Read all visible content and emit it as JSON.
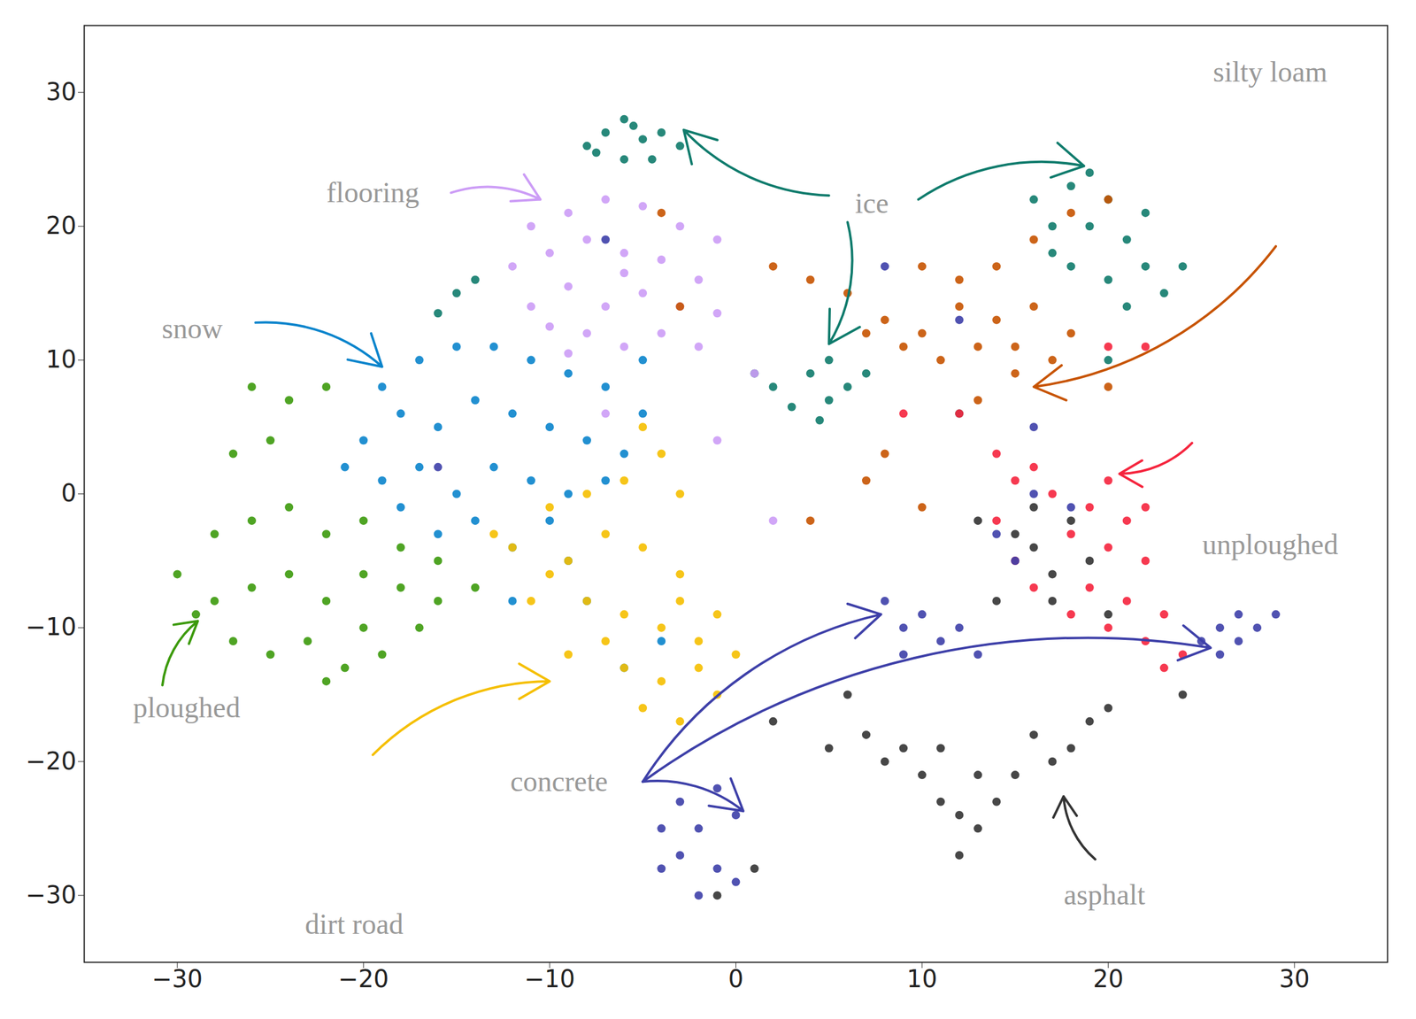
{
  "chart_data": {
    "type": "scatter",
    "xlim": [
      -35,
      35
    ],
    "ylim": [
      -35,
      35
    ],
    "xticks": [
      -30,
      -20,
      -10,
      0,
      10,
      20,
      30
    ],
    "yticks": [
      -30,
      -20,
      -10,
      0,
      10,
      20,
      30
    ],
    "grid": false,
    "series": [
      {
        "name": "ice",
        "color": "#0f7b6c",
        "x": [
          -8,
          -7,
          -6,
          -5,
          -4,
          -3,
          -6,
          -7.5,
          -4.5,
          -5.5,
          16,
          18,
          20,
          17,
          19,
          21,
          22,
          18,
          20,
          23,
          21,
          17,
          19,
          22,
          24,
          2,
          4,
          5,
          6,
          3,
          5,
          4.5,
          1,
          7,
          -15,
          -14,
          -16,
          12,
          20
        ],
        "y": [
          26,
          27,
          28,
          26.5,
          27,
          26,
          25,
          25.5,
          25,
          27.5,
          22,
          23,
          22,
          20,
          20,
          19,
          17,
          17,
          16,
          15,
          14,
          18,
          24,
          21,
          17,
          8,
          9,
          7,
          8,
          6.5,
          10,
          5.5,
          9,
          9,
          15,
          16,
          13.5,
          6,
          10
        ]
      },
      {
        "name": "flooring",
        "color": "#cc9cf6",
        "x": [
          -11,
          -9,
          -7,
          -5,
          -3,
          -1,
          -12,
          -10,
          -8,
          -6,
          -4,
          -2,
          -11,
          -9,
          -7,
          -5,
          -3,
          -1,
          -8,
          -6,
          -4,
          -9,
          -2,
          -10,
          -6,
          -7,
          2,
          1,
          -1
        ],
        "y": [
          20,
          21,
          22,
          21.5,
          20,
          19,
          17,
          18,
          19,
          18,
          17.5,
          16,
          14,
          15.5,
          14,
          15,
          14,
          13.5,
          12,
          11,
          12,
          10.5,
          11,
          12.5,
          16.5,
          6,
          -2,
          9,
          4
        ]
      },
      {
        "name": "snow",
        "color": "#0a84cc",
        "x": [
          -19,
          -17,
          -15,
          -13,
          -11,
          -9,
          -7,
          -5,
          -20,
          -18,
          -16,
          -14,
          -12,
          -10,
          -8,
          -6,
          -19,
          -17,
          -15,
          -13,
          -11,
          -9,
          -7,
          -16,
          -14,
          -12,
          -10,
          -18,
          -21,
          -5,
          -8,
          -6,
          -9,
          -12,
          -4
        ],
        "y": [
          8,
          10,
          11,
          11,
          10,
          9,
          8,
          6,
          4,
          6,
          5,
          7,
          6,
          5,
          4,
          3,
          1,
          2,
          0,
          2,
          1,
          0,
          1,
          -3,
          -2,
          -4,
          -2,
          -1,
          2,
          10,
          -8,
          -13,
          -5,
          -8,
          -11
        ]
      },
      {
        "name": "ploughed",
        "color": "#3c9a0c",
        "x": [
          -26,
          -24,
          -22,
          -27,
          -25,
          -28,
          -26,
          -24,
          -22,
          -20,
          -18,
          -16,
          -30,
          -28,
          -26,
          -24,
          -22,
          -20,
          -18,
          -16,
          -14,
          -27,
          -25,
          -23,
          -21,
          -19,
          -17,
          -22,
          -29,
          -20
        ],
        "y": [
          8,
          7,
          8,
          3,
          4,
          -3,
          -2,
          -1,
          -3,
          -2,
          -4,
          -5,
          -6,
          -8,
          -7,
          -6,
          -8,
          -6,
          -7,
          -8,
          -7,
          -11,
          -12,
          -11,
          -13,
          -12,
          -10,
          -14,
          -9,
          -10
        ]
      },
      {
        "name": "dirt road",
        "color": "#f5bf00",
        "x": [
          -5,
          -4,
          -6,
          -3,
          -8,
          -10,
          -7,
          -12,
          -9,
          -5,
          -3,
          -11,
          -8,
          -6,
          -4,
          -2,
          -9,
          -6,
          -4,
          -2,
          0,
          -5,
          -3,
          -1,
          -7,
          -13,
          -10,
          -3,
          -1
        ],
        "y": [
          5,
          3,
          1,
          0,
          0,
          -1,
          -3,
          -4,
          -5,
          -4,
          -6,
          -8,
          -8,
          -9,
          -10,
          -11,
          -12,
          -13,
          -14,
          -13,
          -12,
          -16,
          -17,
          -15,
          -11,
          -3,
          -6,
          -8,
          -9
        ]
      },
      {
        "name": "silty loam",
        "color": "#c75300",
        "x": [
          2,
          4,
          6,
          8,
          10,
          12,
          14,
          16,
          18,
          17,
          15,
          13,
          11,
          9,
          7,
          14,
          16,
          18,
          20,
          12,
          10,
          15,
          -4,
          -3,
          7,
          10,
          4,
          20,
          13,
          8
        ],
        "y": [
          17,
          16,
          15,
          13,
          12,
          14,
          13,
          14,
          12,
          10,
          9,
          11,
          10,
          11,
          12,
          17,
          19,
          21,
          22,
          16,
          17,
          11,
          21,
          14,
          1,
          -1,
          -2,
          8,
          7,
          3
        ]
      },
      {
        "name": "unploughed",
        "color": "#f5243d",
        "x": [
          14,
          15,
          16,
          17,
          19,
          21,
          22,
          14,
          18,
          20,
          22,
          19,
          21,
          23,
          20,
          22,
          24,
          23,
          18,
          15,
          16,
          20,
          12,
          9,
          22,
          20
        ],
        "y": [
          3,
          1,
          2,
          0,
          -1,
          -2,
          -1,
          -2,
          -3,
          -4,
          -5,
          -7,
          -8,
          -9,
          -10,
          -11,
          -12,
          -13,
          -9,
          -5,
          -7,
          1,
          6,
          6,
          11,
          11
        ]
      },
      {
        "name": "asphalt",
        "color": "#333333",
        "x": [
          5,
          7,
          9,
          10,
          11,
          12,
          13,
          14,
          15,
          16,
          17,
          18,
          19,
          20,
          11,
          13,
          12,
          8,
          15,
          16,
          17,
          18,
          19,
          17,
          14,
          16,
          20,
          13,
          -1,
          1,
          6,
          2,
          24
        ],
        "y": [
          -19,
          -18,
          -19,
          -21,
          -23,
          -24,
          -25,
          -23,
          -21,
          -18,
          -20,
          -19,
          -17,
          -16,
          -19,
          -21,
          -27,
          -20,
          -3,
          -4,
          -6,
          -2,
          -5,
          -8,
          -8,
          -1,
          -9,
          -2,
          -30,
          -28,
          -15,
          -17,
          -15
        ]
      },
      {
        "name": "concrete",
        "color": "#3d3fa8",
        "x": [
          -3,
          -1,
          -4,
          -2,
          0,
          -3,
          -1,
          -2,
          0,
          -4,
          8,
          9,
          10,
          11,
          12,
          13,
          9,
          25,
          26,
          27,
          28,
          29,
          27,
          26,
          14,
          16,
          18,
          16,
          8,
          12,
          -16,
          -7,
          15
        ],
        "y": [
          -23,
          -22,
          -25,
          -25,
          -24,
          -27,
          -28,
          -30,
          -29,
          -28,
          -8,
          -10,
          -9,
          -11,
          -10,
          -12,
          -12,
          -11,
          -10,
          -9,
          -10,
          -9,
          -11,
          -12,
          -3,
          0,
          -1,
          5,
          17,
          13,
          2,
          19,
          -5
        ]
      }
    ],
    "annotations": [
      {
        "text": "flooring",
        "x": -19.5,
        "y": 22.5,
        "arrows": [
          [
            -15.3,
            22.5,
            -10.5,
            22
          ]
        ]
      },
      {
        "text": "ice",
        "x": 7.3,
        "y": 21.7,
        "arrows": [
          [
            5,
            22.3,
            -2.8,
            27.2
          ],
          [
            9.8,
            22,
            18.7,
            24.5
          ],
          [
            6,
            20.3,
            5,
            11.2
          ]
        ]
      },
      {
        "text": "silty loam",
        "x": 28.7,
        "y": 31.5,
        "arrows": [
          [
            29,
            18.5,
            16,
            8
          ]
        ]
      },
      {
        "text": "snow",
        "x": -29.2,
        "y": 12.3,
        "arrows": [
          [
            -25.8,
            12.8,
            -19,
            9.5
          ]
        ]
      },
      {
        "text": "unploughed",
        "x": 28.7,
        "y": -3.8,
        "arrows": [
          [
            24.5,
            3.8,
            20.6,
            1.5
          ]
        ]
      },
      {
        "text": "ploughed",
        "x": -29.5,
        "y": -16,
        "arrows": [
          [
            -30.8,
            -14.3,
            -28.9,
            -9.5
          ]
        ]
      },
      {
        "text": "dirt road",
        "x": -20.5,
        "y": -32.2,
        "arrows": [
          [
            -19.5,
            -19.5,
            -10,
            -14
          ]
        ]
      },
      {
        "text": "concrete",
        "x": -9.5,
        "y": -21.5,
        "arrows": [
          [
            -5,
            -21.5,
            7.8,
            -9
          ],
          [
            -5,
            -21.5,
            25.5,
            -11.5
          ],
          [
            -5,
            -21.5,
            0.4,
            -23.7
          ]
        ]
      },
      {
        "text": "asphalt",
        "x": 19.8,
        "y": -30,
        "arrows": [
          [
            19.3,
            -27.3,
            17.6,
            -22.6
          ]
        ]
      }
    ]
  }
}
